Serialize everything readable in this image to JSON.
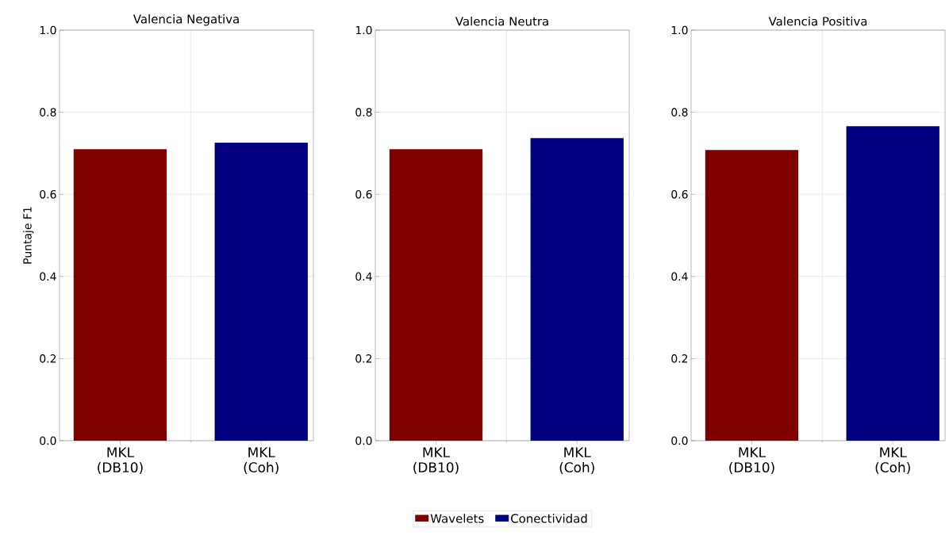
{
  "chart_data": [
    {
      "type": "bar",
      "title": "Valencia Negativa",
      "ylabel": "Puntaje F1",
      "categories": [
        "MKL (DB10)",
        "MKL (Coh)"
      ],
      "series": [
        {
          "color": "#800000",
          "values": [
            0.71,
            null
          ]
        },
        {
          "color": "#000080",
          "values": [
            null,
            0.726
          ]
        }
      ],
      "ylim": [
        0,
        1
      ],
      "yticks": [
        {
          "value": 0,
          "label": "0.0"
        },
        {
          "value": 0.2,
          "label": "0.2"
        },
        {
          "value": 0.4,
          "label": "0.4"
        },
        {
          "value": 0.6,
          "label": "0.6"
        },
        {
          "value": 0.8,
          "label": "0.8"
        },
        {
          "value": 1,
          "label": "1.0"
        }
      ],
      "grid": true
    },
    {
      "type": "bar",
      "title": "Valencia Neutra",
      "categories": [
        "MKL (DB10)",
        "MKL (Coh)"
      ],
      "series": [
        {
          "name": "Wavelets",
          "color": "#800000",
          "values": [
            0.71,
            null
          ]
        },
        {
          "name": "Conectividad",
          "color": "#000080",
          "values": [
            null,
            0.737
          ]
        }
      ],
      "ylim": [
        0,
        1
      ],
      "yticks": [
        {
          "value": 0,
          "label": "0.0"
        },
        {
          "value": 0.2,
          "label": "0.2"
        },
        {
          "value": 0.4,
          "label": "0.4"
        },
        {
          "value": 0.6,
          "label": "0.6"
        },
        {
          "value": 0.8,
          "label": "0.8"
        },
        {
          "value": 1,
          "label": "1.0"
        }
      ],
      "grid": true,
      "legend": "bottom"
    },
    {
      "type": "bar",
      "title": "Valencia Positiva",
      "categories": [
        "MKL (DB10)",
        "MKL (Coh)"
      ],
      "series": [
        {
          "color": "#800000",
          "values": [
            0.708,
            null
          ]
        },
        {
          "color": "#000080",
          "values": [
            null,
            0.766
          ]
        }
      ],
      "ylim": [
        0,
        1
      ],
      "yticks": [
        {
          "value": 0,
          "label": "0.0"
        },
        {
          "value": 0.2,
          "label": "0.2"
        },
        {
          "value": 0.4,
          "label": "0.4"
        },
        {
          "value": 0.6,
          "label": "0.6"
        },
        {
          "value": 0.8,
          "label": "0.8"
        },
        {
          "value": 1,
          "label": "1.0"
        }
      ],
      "grid": true
    }
  ]
}
